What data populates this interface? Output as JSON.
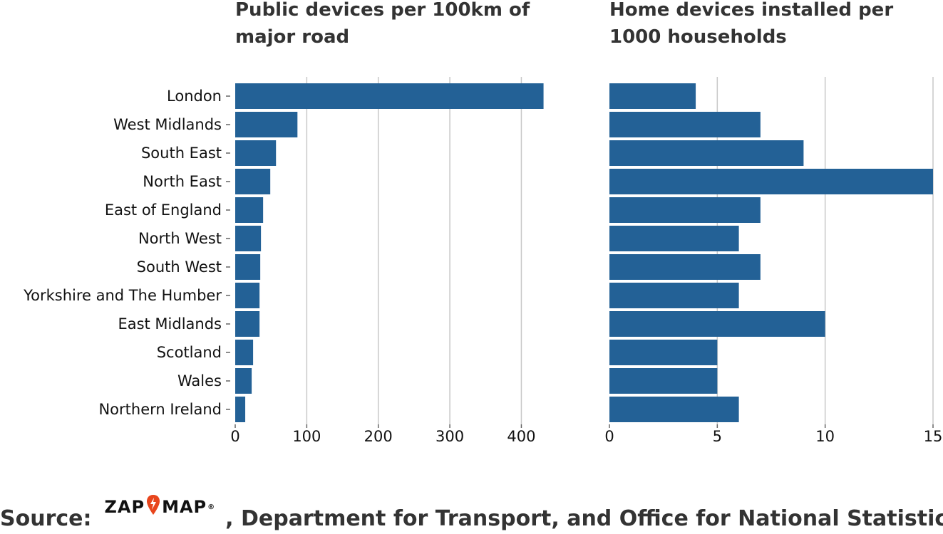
{
  "chart_data": [
    {
      "type": "bar",
      "orientation": "horizontal",
      "title": "Public devices per 100km of major road",
      "categories": [
        "London",
        "West Midlands",
        "South East",
        "North East",
        "East of England",
        "North West",
        "South West",
        "Yorkshire and The Humber",
        "East Midlands",
        "Scotland",
        "Wales",
        "Northern Ireland"
      ],
      "values": [
        431,
        87,
        57,
        49,
        39,
        36,
        35,
        34,
        34,
        25,
        23,
        14
      ],
      "xlim": [
        0,
        440
      ],
      "xticks": [
        "0",
        "100",
        "200",
        "300",
        "400"
      ],
      "grid": true,
      "color": "#236196"
    },
    {
      "type": "bar",
      "orientation": "horizontal",
      "title": "Home devices installed per 1000 households",
      "categories": [
        "London",
        "West Midlands",
        "South East",
        "North East",
        "East of England",
        "North West",
        "South West",
        "Yorkshire and The Humber",
        "East Midlands",
        "Scotland",
        "Wales",
        "Northern Ireland"
      ],
      "values": [
        4,
        7,
        9,
        15,
        7,
        6,
        7,
        6,
        10,
        5,
        5,
        6
      ],
      "xlim": [
        0,
        15
      ],
      "xticks": [
        "0",
        "5",
        "10",
        "15"
      ],
      "grid": true,
      "color": "#236196"
    }
  ],
  "source": {
    "prefix": "Source:",
    "logo_text_left": "ZAP",
    "logo_text_right": "MAP",
    "logo_reg": "®",
    "logo_icon": "lightning-pin-icon",
    "logo_color": "#e8451c",
    "suffix": ", Department for Transport, and Office for National Statistics"
  }
}
